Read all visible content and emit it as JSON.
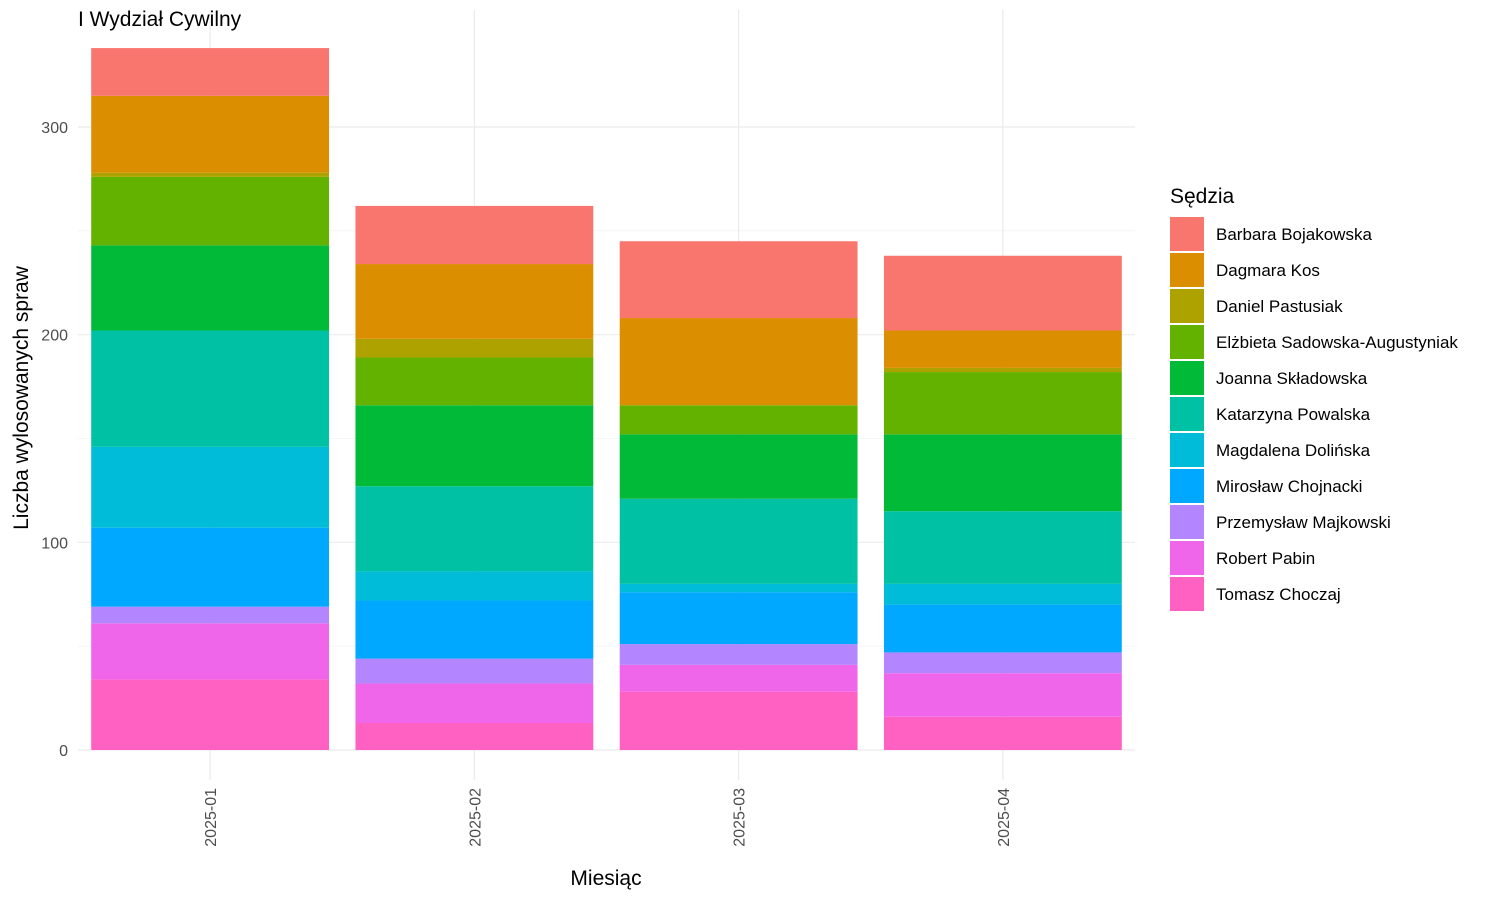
{
  "chart_data": {
    "type": "bar",
    "stacked": true,
    "title": "I Wydział Cywilny",
    "xlabel": "Miesiąc",
    "ylabel": "Liczba wylosowanych spraw",
    "categories": [
      "2025-01",
      "2025-02",
      "2025-03",
      "2025-04"
    ],
    "ylim": [
      0,
      345
    ],
    "yticks": [
      0,
      100,
      200,
      300
    ],
    "grid": true,
    "legend": {
      "title": "Sędzia",
      "position": "right"
    },
    "series": [
      {
        "name": "Tomasz Choczaj",
        "color": "#FF61C3",
        "values": [
          34,
          13,
          28,
          16
        ]
      },
      {
        "name": "Robert Pabin",
        "color": "#F066EA",
        "values": [
          27,
          19,
          13,
          21
        ]
      },
      {
        "name": "Przemysław Majkowski",
        "color": "#B385FF",
        "values": [
          8,
          12,
          10,
          10
        ]
      },
      {
        "name": "Mirosław Chojnacki",
        "color": "#00A9FF",
        "values": [
          38,
          28,
          25,
          23
        ]
      },
      {
        "name": "Magdalena Dolińska",
        "color": "#00BCD8",
        "values": [
          39,
          14,
          4,
          10
        ]
      },
      {
        "name": "Katarzyna Powalska",
        "color": "#00C1A3",
        "values": [
          56,
          41,
          41,
          35
        ]
      },
      {
        "name": "Joanna Składowska",
        "color": "#00BA38",
        "values": [
          41,
          39,
          31,
          37
        ]
      },
      {
        "name": "Elżbieta Sadowska-Augustyniak",
        "color": "#64B200",
        "values": [
          33,
          23,
          14,
          30
        ]
      },
      {
        "name": "Daniel Pastusiak",
        "color": "#AEA200",
        "values": [
          2,
          9,
          0,
          2
        ]
      },
      {
        "name": "Dagmara Kos",
        "color": "#DB8E00",
        "values": [
          37,
          36,
          42,
          18
        ]
      },
      {
        "name": "Barbara Bojakowska",
        "color": "#F8766D",
        "values": [
          23,
          28,
          37,
          36
        ]
      }
    ]
  }
}
